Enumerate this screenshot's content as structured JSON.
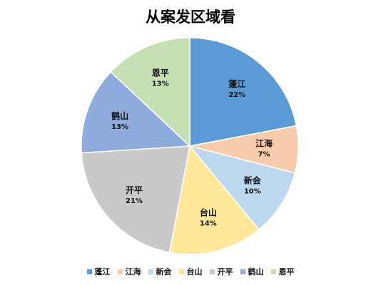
{
  "chart_data": {
    "type": "pie",
    "title": "从案发区域看",
    "categories": [
      "蓬江",
      "江海",
      "新会",
      "台山",
      "开平",
      "鹤山",
      "恩平"
    ],
    "values": [
      22,
      7,
      10,
      14,
      21,
      13,
      13
    ],
    "value_labels": [
      "22%",
      "7%",
      "10%",
      "14%",
      "21%",
      "13%",
      "13%"
    ],
    "colors": [
      "#5b9bd5",
      "#f8cbad",
      "#bdd7ee",
      "#ffe699",
      "#c9c9c9",
      "#8faadc",
      "#c5e0b4"
    ],
    "start_angle": "12 o'clock",
    "direction": "clockwise",
    "legend": "bottom",
    "data_labels": "inside"
  }
}
